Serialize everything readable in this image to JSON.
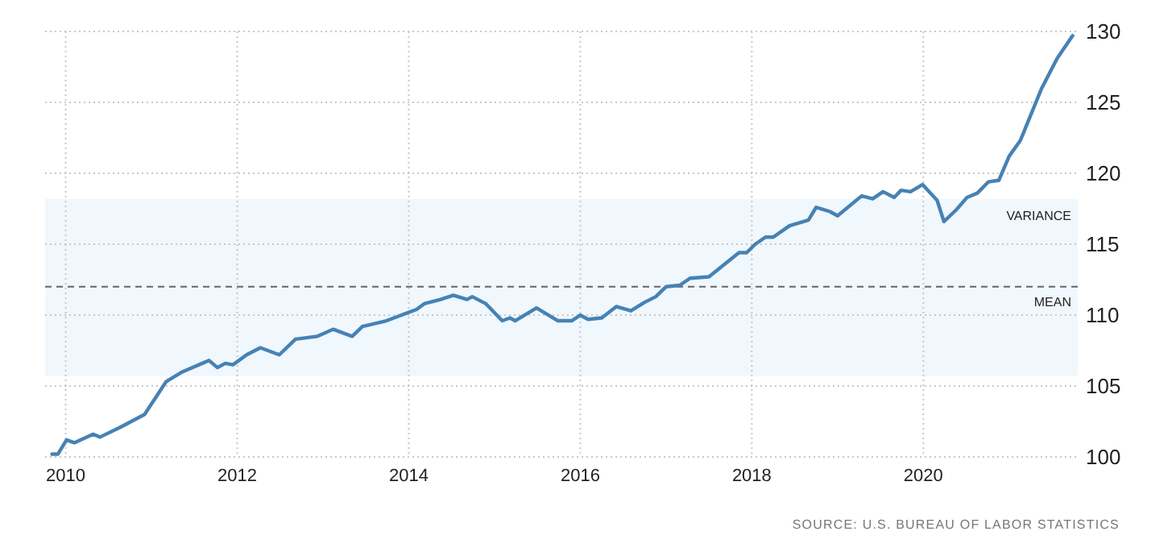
{
  "chart_data": {
    "type": "line",
    "xlim": [
      2009.76,
      2021.8
    ],
    "xticks": [
      2010,
      2012,
      2014,
      2016,
      2018,
      2020
    ],
    "ylim": [
      100,
      130
    ],
    "yticks": [
      100,
      105,
      110,
      115,
      120,
      125,
      130
    ],
    "grid": true,
    "series": [
      {
        "color": "#4682b4",
        "x": [
          2009.84,
          2009.91,
          2010.01,
          2010.1,
          2010.32,
          2010.4,
          2010.64,
          2010.92,
          2011.17,
          2011.36,
          2011.67,
          2011.77,
          2011.86,
          2011.95,
          2012.11,
          2012.27,
          2012.49,
          2012.68,
          2012.93,
          2013.12,
          2013.34,
          2013.46,
          2013.74,
          2014.09,
          2014.18,
          2014.37,
          2014.52,
          2014.68,
          2014.74,
          2014.9,
          2015.09,
          2015.18,
          2015.24,
          2015.49,
          2015.74,
          2015.9,
          2016.0,
          2016.09,
          2016.25,
          2016.42,
          2016.59,
          2016.75,
          2016.88,
          2017.0,
          2017.16,
          2017.28,
          2017.5,
          2017.85,
          2017.94,
          2018.04,
          2018.16,
          2018.25,
          2018.44,
          2018.66,
          2018.75,
          2018.91,
          2019.0,
          2019.28,
          2019.41,
          2019.53,
          2019.66,
          2019.74,
          2019.85,
          2019.99,
          2020.16,
          2020.24,
          2020.38,
          2020.51,
          2020.63,
          2020.76,
          2020.88,
          2021.0,
          2021.13,
          2021.38,
          2021.56,
          2021.74
        ],
        "values": [
          100.2,
          100.2,
          101.2,
          101.0,
          101.6,
          101.4,
          102.1,
          103.0,
          105.3,
          106.0,
          106.8,
          106.3,
          106.6,
          106.5,
          107.2,
          107.7,
          107.2,
          108.3,
          108.5,
          109.0,
          108.5,
          109.2,
          109.6,
          110.4,
          110.8,
          111.1,
          111.4,
          111.1,
          111.3,
          110.8,
          109.6,
          109.8,
          109.6,
          110.5,
          109.6,
          109.6,
          110.0,
          109.7,
          109.8,
          110.6,
          110.3,
          110.9,
          111.3,
          112.0,
          112.1,
          112.6,
          112.7,
          114.4,
          114.4,
          115.0,
          115.5,
          115.5,
          116.3,
          116.7,
          117.6,
          117.3,
          117.0,
          118.4,
          118.2,
          118.7,
          118.3,
          118.8,
          118.7,
          119.2,
          118.1,
          116.6,
          117.4,
          118.3,
          118.6,
          119.4,
          119.5,
          121.2,
          122.3,
          126.0,
          128.1,
          129.7
        ]
      }
    ],
    "ref_lines": [
      {
        "axis": "y",
        "value": 112.0,
        "label": "MEAN",
        "color": "#666666",
        "line_style": "dashed"
      }
    ],
    "bands": [
      {
        "axis": "y",
        "from": 105.7,
        "to": 118.2,
        "label": "VARIANCE",
        "color": "#f0f7fd"
      }
    ],
    "annotations": [
      "SOURCE: U.S. BUREAU OF LABOR STATISTICS"
    ]
  }
}
